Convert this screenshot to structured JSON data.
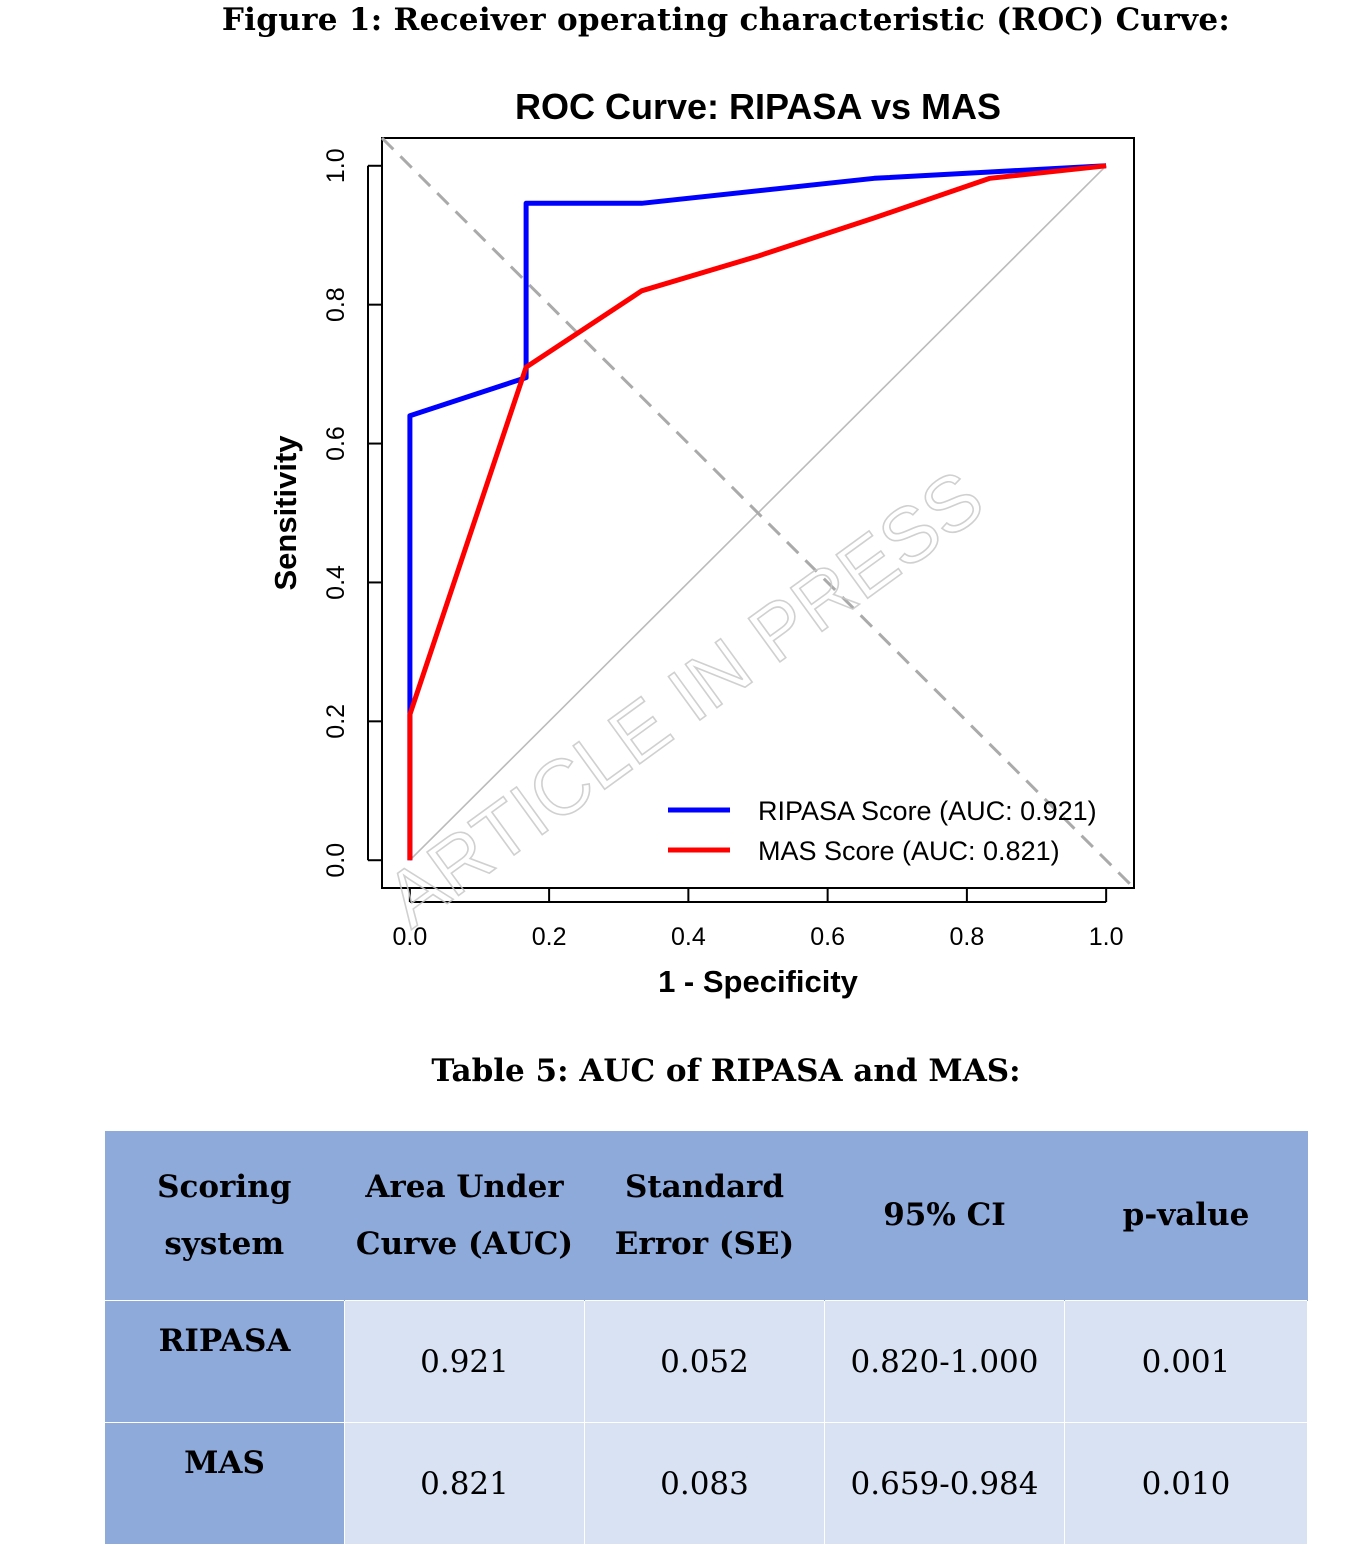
{
  "figure_caption": "Figure 1: Receiver operating characteristic (ROC) Curve:",
  "watermark": "ARTICLE IN PRESS",
  "chart_data": {
    "type": "line",
    "title": "ROC Curve: RIPASA vs MAS",
    "xlabel": "1 - Specificity",
    "ylabel": "Sensitivity",
    "xlim": [
      -0.04,
      1.04
    ],
    "ylim": [
      -0.04,
      1.04
    ],
    "x_ticks": [
      "0.0",
      "0.2",
      "0.4",
      "0.6",
      "0.8",
      "1.0"
    ],
    "y_ticks": [
      "0.0",
      "0.2",
      "0.4",
      "0.6",
      "0.8",
      "1.0"
    ],
    "grid": false,
    "legend_position": "bottom-right",
    "reference_lines": [
      {
        "style": "solid",
        "color": "#bbbbbb",
        "from": [
          0,
          0
        ],
        "to": [
          1,
          1
        ]
      },
      {
        "style": "dashed",
        "color": "#aaaaaa",
        "from": [
          -0.04,
          1.04
        ],
        "to": [
          1.04,
          -0.04
        ]
      }
    ],
    "series": [
      {
        "name": "RIPASA Score (AUC: 0.921)",
        "color": "#0000ff",
        "points": [
          [
            0,
            0
          ],
          [
            0,
            0.64
          ],
          [
            0.167,
            0.695
          ],
          [
            0.167,
            0.946
          ],
          [
            0.333,
            0.946
          ],
          [
            0.667,
            0.982
          ],
          [
            0.833,
            0.991
          ],
          [
            1.0,
            1.0
          ]
        ]
      },
      {
        "name": "MAS Score (AUC: 0.821)",
        "color": "#ff0000",
        "points": [
          [
            0,
            0
          ],
          [
            0,
            0.21
          ],
          [
            0.167,
            0.71
          ],
          [
            0.333,
            0.82
          ],
          [
            0.5,
            0.87
          ],
          [
            0.667,
            0.925
          ],
          [
            0.833,
            0.982
          ],
          [
            1.0,
            1.0
          ]
        ]
      }
    ]
  },
  "table_caption": "Table 5: AUC of RIPASA and MAS:",
  "table": {
    "headers": [
      "Scoring system",
      "Area Under Curve (AUC)",
      "Standard Error (SE)",
      "95% CI",
      "p-value"
    ],
    "rows": [
      [
        "RIPASA",
        "0.921",
        "0.052",
        "0.820-1.000",
        "0.001"
      ],
      [
        "MAS",
        "0.821",
        "0.083",
        "0.659-0.984",
        "0.010"
      ]
    ]
  }
}
